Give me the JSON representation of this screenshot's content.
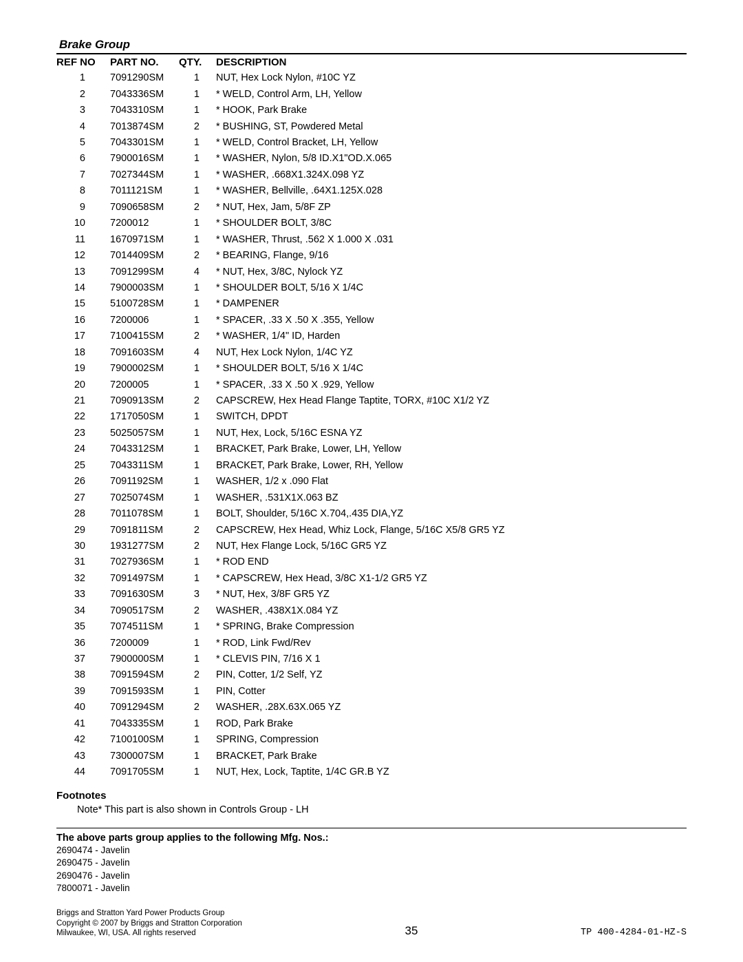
{
  "section_title": "Brake Group",
  "table": {
    "columns": {
      "ref": "REF NO",
      "part": "PART NO.",
      "qty": "QTY.",
      "desc": "DESCRIPTION"
    },
    "rows": [
      {
        "ref": "1",
        "part": "7091290SM",
        "qty": "1",
        "desc": "NUT, Hex Lock Nylon, #10C YZ"
      },
      {
        "ref": "2",
        "part": "7043336SM",
        "qty": "1",
        "desc": "* WELD, Control Arm, LH, Yellow"
      },
      {
        "ref": "3",
        "part": "7043310SM",
        "qty": "1",
        "desc": "* HOOK, Park Brake"
      },
      {
        "ref": "4",
        "part": "7013874SM",
        "qty": "2",
        "desc": "* BUSHING, ST, Powdered Metal"
      },
      {
        "ref": "5",
        "part": "7043301SM",
        "qty": "1",
        "desc": "* WELD, Control Bracket, LH, Yellow"
      },
      {
        "ref": "6",
        "part": "7900016SM",
        "qty": "1",
        "desc": "* WASHER, Nylon, 5/8 ID.X1\"OD.X.065"
      },
      {
        "ref": "7",
        "part": "7027344SM",
        "qty": "1",
        "desc": "* WASHER, .668X1.324X.098 YZ"
      },
      {
        "ref": "8",
        "part": "7011121SM",
        "qty": "1",
        "desc": "* WASHER, Bellville, .64X1.125X.028"
      },
      {
        "ref": "9",
        "part": "7090658SM",
        "qty": "2",
        "desc": "* NUT, Hex, Jam, 5/8F ZP"
      },
      {
        "ref": "10",
        "part": "7200012",
        "qty": "1",
        "desc": "* SHOULDER BOLT, 3/8C"
      },
      {
        "ref": "11",
        "part": "1670971SM",
        "qty": "1",
        "desc": "* WASHER, Thrust, .562 X 1.000 X .031"
      },
      {
        "ref": "12",
        "part": "7014409SM",
        "qty": "2",
        "desc": "* BEARING, Flange, 9/16"
      },
      {
        "ref": "13",
        "part": "7091299SM",
        "qty": "4",
        "desc": "* NUT, Hex, 3/8C, Nylock YZ"
      },
      {
        "ref": "14",
        "part": "7900003SM",
        "qty": "1",
        "desc": "* SHOULDER BOLT, 5/16 X 1/4C"
      },
      {
        "ref": "15",
        "part": "5100728SM",
        "qty": "1",
        "desc": "* DAMPENER"
      },
      {
        "ref": "16",
        "part": "7200006",
        "qty": "1",
        "desc": "* SPACER, .33 X .50 X .355, Yellow"
      },
      {
        "ref": "17",
        "part": "7100415SM",
        "qty": "2",
        "desc": "* WASHER, 1/4\" ID, Harden"
      },
      {
        "ref": "18",
        "part": "7091603SM",
        "qty": "4",
        "desc": "NUT, Hex Lock Nylon, 1/4C YZ"
      },
      {
        "ref": "19",
        "part": "7900002SM",
        "qty": "1",
        "desc": "* SHOULDER BOLT, 5/16 X 1/4C"
      },
      {
        "ref": "20",
        "part": "7200005",
        "qty": "1",
        "desc": "* SPACER, .33 X .50 X .929, Yellow"
      },
      {
        "ref": "21",
        "part": "7090913SM",
        "qty": "2",
        "desc": "CAPSCREW, Hex Head Flange Taptite, TORX, #10C X1/2 YZ"
      },
      {
        "ref": "22",
        "part": "1717050SM",
        "qty": "1",
        "desc": "SWITCH, DPDT"
      },
      {
        "ref": "23",
        "part": "5025057SM",
        "qty": "1",
        "desc": "NUT, Hex, Lock, 5/16C ESNA YZ"
      },
      {
        "ref": "24",
        "part": "7043312SM",
        "qty": "1",
        "desc": "BRACKET, Park Brake, Lower, LH, Yellow"
      },
      {
        "ref": "25",
        "part": "7043311SM",
        "qty": "1",
        "desc": "BRACKET, Park Brake, Lower, RH, Yellow"
      },
      {
        "ref": "26",
        "part": "7091192SM",
        "qty": "1",
        "desc": "WASHER, 1/2 x .090 Flat"
      },
      {
        "ref": "27",
        "part": "7025074SM",
        "qty": "1",
        "desc": "WASHER, .531X1X.063 BZ"
      },
      {
        "ref": "28",
        "part": "7011078SM",
        "qty": "1",
        "desc": "BOLT, Shoulder, 5/16C X.704,.435 DIA,YZ"
      },
      {
        "ref": "29",
        "part": "7091811SM",
        "qty": "2",
        "desc": "CAPSCREW, Hex Head, Whiz Lock, Flange, 5/16C X5/8 GR5 YZ"
      },
      {
        "ref": "30",
        "part": "1931277SM",
        "qty": "2",
        "desc": "NUT, Hex Flange Lock, 5/16C GR5 YZ"
      },
      {
        "ref": "31",
        "part": "7027936SM",
        "qty": "1",
        "desc": "* ROD END"
      },
      {
        "ref": "32",
        "part": "7091497SM",
        "qty": "1",
        "desc": "* CAPSCREW, Hex Head, 3/8C X1-1/2 GR5 YZ"
      },
      {
        "ref": "33",
        "part": "7091630SM",
        "qty": "3",
        "desc": "* NUT, Hex, 3/8F GR5 YZ"
      },
      {
        "ref": "34",
        "part": "7090517SM",
        "qty": "2",
        "desc": "WASHER, .438X1X.084 YZ"
      },
      {
        "ref": "35",
        "part": "7074511SM",
        "qty": "1",
        "desc": "* SPRING, Brake Compression"
      },
      {
        "ref": "36",
        "part": "7200009",
        "qty": "1",
        "desc": "* ROD, Link Fwd/Rev"
      },
      {
        "ref": "37",
        "part": "7900000SM",
        "qty": "1",
        "desc": "* CLEVIS PIN, 7/16 X 1"
      },
      {
        "ref": "38",
        "part": "7091594SM",
        "qty": "2",
        "desc": "PIN, Cotter, 1/2 Self, YZ"
      },
      {
        "ref": "39",
        "part": "7091593SM",
        "qty": "1",
        "desc": "PIN, Cotter"
      },
      {
        "ref": "40",
        "part": "7091294SM",
        "qty": "2",
        "desc": "WASHER, .28X.63X.065 YZ"
      },
      {
        "ref": "41",
        "part": "7043335SM",
        "qty": "1",
        "desc": "ROD, Park Brake"
      },
      {
        "ref": "42",
        "part": "7100100SM",
        "qty": "1",
        "desc": "SPRING, Compression"
      },
      {
        "ref": "43",
        "part": "7300007SM",
        "qty": "1",
        "desc": "BRACKET, Park Brake"
      },
      {
        "ref": "44",
        "part": "7091705SM",
        "qty": "1",
        "desc": "NUT, Hex, Lock, Taptite, 1/4C GR.B YZ"
      }
    ]
  },
  "footnotes": {
    "title": "Footnotes",
    "items": [
      "Note* This part is also shown in Controls Group - LH"
    ]
  },
  "applies": {
    "title": "The above parts group applies to the following Mfg. Nos.:",
    "items": [
      "2690474 - Javelin",
      "2690475 - Javelin",
      "2690476 - Javelin",
      "7800071 - Javelin"
    ]
  },
  "footer": {
    "left_line1": "Briggs and Stratton Yard Power Products Group",
    "left_line2": "Copyright © 2007 by Briggs and Stratton Corporation",
    "left_line3": "Milwaukee, WI, USA. All rights reserved",
    "page_no": "35",
    "doc_id": "TP 400-4284-01-HZ-S"
  }
}
